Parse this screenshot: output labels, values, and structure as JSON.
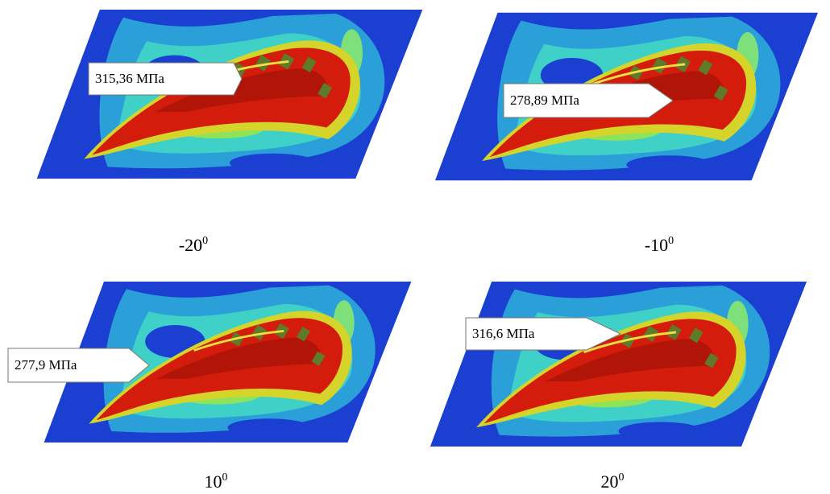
{
  "panels": [
    {
      "callout": "315,36 МПа",
      "angle": "-20",
      "angle_sup": "0"
    },
    {
      "callout": "278,89 МПа",
      "angle": "-10",
      "angle_sup": "0"
    },
    {
      "callout": "277,9 МПа",
      "angle": "10",
      "angle_sup": "0"
    },
    {
      "callout": "316,6 МПа",
      "angle": "20",
      "angle_sup": "0"
    }
  ]
}
